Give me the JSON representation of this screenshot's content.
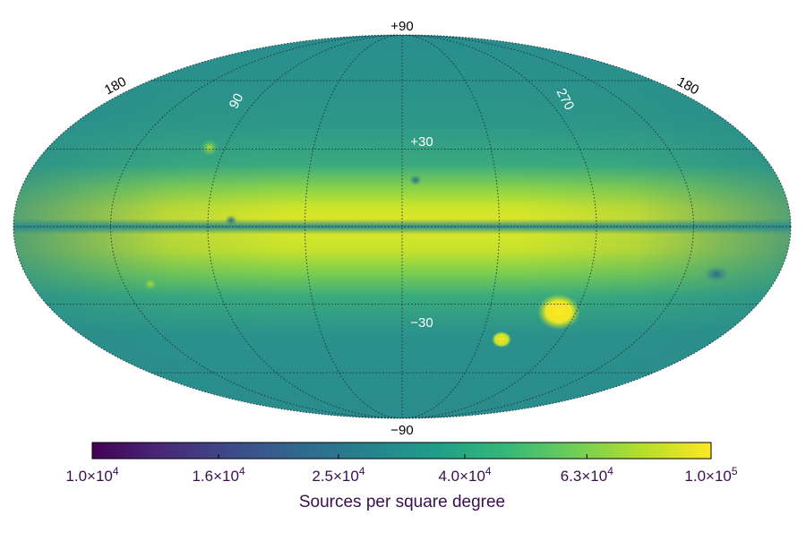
{
  "chart_data": {
    "type": "heatmap",
    "projection": "mollweide",
    "description_note": "",
    "latitude_labels": [
      {
        "text": "+90",
        "lat": 90,
        "placement": "above",
        "color": "#000000"
      },
      {
        "text": "+30",
        "lat": 30,
        "placement": "inside",
        "color": "#ffffff"
      },
      {
        "text": "−30",
        "lat": -30,
        "placement": "inside",
        "color": "#ffffff"
      },
      {
        "text": "−90",
        "lat": -90,
        "placement": "below",
        "color": "#000000"
      }
    ],
    "longitude_labels": [
      {
        "text": "180",
        "side": "left-edge",
        "color": "#000000"
      },
      {
        "text": "90",
        "lon": 90,
        "color": "#ffffff"
      },
      {
        "text": "270",
        "lon": 270,
        "color": "#ffffff"
      },
      {
        "text": "180",
        "side": "right-edge",
        "color": "#000000"
      }
    ],
    "graticule": {
      "lat_step_deg": 30,
      "lon_step_deg": 45
    },
    "density_features": [
      {
        "name": "galactic plane band",
        "lat_center": 0,
        "lat_width_deg": 12,
        "value": 70000
      },
      {
        "name": "Large Magellanic Cloud",
        "lon": 280,
        "lat": -33,
        "value": 100000
      },
      {
        "name": "Small Magellanic Cloud",
        "lon": 303,
        "lat": -44,
        "value": 90000
      },
      {
        "name": "compact cluster near +30",
        "lon": 80,
        "lat": 23,
        "value": 60000
      },
      {
        "name": "compact cluster near -20",
        "lon": 57,
        "lat": -20,
        "value": 75000
      },
      {
        "name": "low-density patch",
        "lon": 215,
        "lat": -15,
        "value": 15000
      }
    ],
    "colorbar": {
      "scale": "log",
      "range": [
        10000,
        100000
      ],
      "ticks": [
        {
          "mant": "1.0",
          "exp": "4",
          "value": 10000
        },
        {
          "mant": "1.6",
          "exp": "4",
          "value": 16000
        },
        {
          "mant": "2.5",
          "exp": "4",
          "value": 25000
        },
        {
          "mant": "4.0",
          "exp": "4",
          "value": 40000
        },
        {
          "mant": "6.3",
          "exp": "4",
          "value": 63000
        },
        {
          "mant": "1.0",
          "exp": "5",
          "value": 100000
        }
      ],
      "label": "Sources per square degree",
      "colormap": "viridis",
      "colors": [
        "#440154",
        "#482878",
        "#3e4a89",
        "#31688e",
        "#26828e",
        "#1f9e89",
        "#35b779",
        "#6ece58",
        "#b5de2b",
        "#fde725"
      ]
    }
  }
}
